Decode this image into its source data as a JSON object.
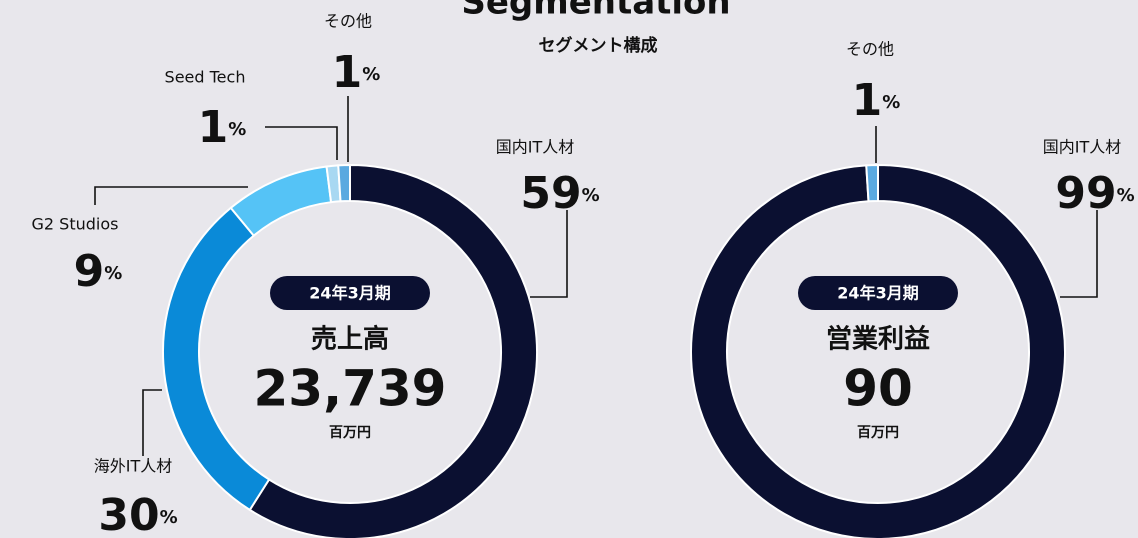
{
  "title": "Segmentation",
  "subtitle": "セグメント構成",
  "chart_data": [
    {
      "type": "donut",
      "period": "24年3月期",
      "metric": "売上高",
      "total": {
        "value": 23739,
        "label": "23,739"
      },
      "unit": "百万円",
      "value_unit": "%",
      "categories": [
        "国内IT人材",
        "海外IT人材",
        "G2 Studios",
        "Seed Tech",
        "その他"
      ],
      "values": [
        59,
        30,
        9,
        1,
        1
      ],
      "colors": [
        "#0b1031",
        "#0a8ad8",
        "#55c3f6",
        "#a8d8f2",
        "#5aa9e0"
      ]
    },
    {
      "type": "donut",
      "period": "24年3月期",
      "metric": "営業利益",
      "total": 90,
      "unit": "百万円",
      "value_unit": "%",
      "categories": [
        "国内IT人材",
        "その他"
      ],
      "values": [
        99,
        1
      ],
      "colors": [
        "#0b1031",
        "#5aa9e0"
      ]
    }
  ]
}
